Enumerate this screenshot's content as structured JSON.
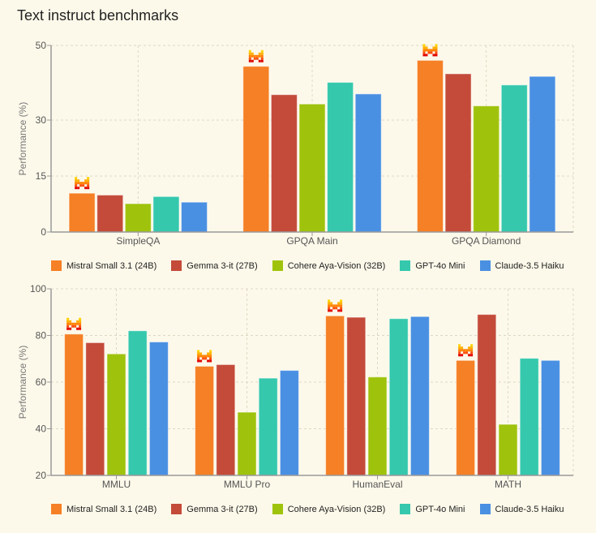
{
  "page": {
    "title": "Text instruct benchmarks"
  },
  "legend": [
    {
      "label": "Mistral Small 3.1 (24B)",
      "color": "#f58025"
    },
    {
      "label": "Gemma 3-it (27B)",
      "color": "#c44b3a"
    },
    {
      "label": "Cohere Aya-Vision (32B)",
      "color": "#9fc30c"
    },
    {
      "label": "GPT-4o Mini",
      "color": "#35c8ad"
    },
    {
      "label": "Claude-3.5 Haiku",
      "color": "#4a90e2"
    }
  ],
  "highlight_icon": "mistral-logo-icon",
  "chart_data": [
    {
      "type": "bar",
      "title": "",
      "xlabel": "",
      "ylabel": "Performance (%)",
      "ylim": [
        0,
        50
      ],
      "yticks": [
        0,
        15,
        30,
        50
      ],
      "grid": true,
      "legend_position": "bottom",
      "categories": [
        "SimpleQA",
        "GPQA Main",
        "GPQA Diamond"
      ],
      "series": [
        {
          "name": "Mistral Small 3.1 (24B)",
          "values": [
            10.4,
            44.4,
            46.0
          ]
        },
        {
          "name": "Gemma 3-it (27B)",
          "values": [
            9.9,
            36.8,
            42.4
          ]
        },
        {
          "name": "Cohere Aya-Vision (32B)",
          "values": [
            7.6,
            34.3,
            33.8
          ]
        },
        {
          "name": "GPT-4o Mini",
          "values": [
            9.5,
            40.1,
            39.4
          ]
        },
        {
          "name": "Claude-3.5 Haiku",
          "values": [
            8.0,
            37.0,
            41.7
          ]
        }
      ],
      "highlight_series": "Mistral Small 3.1 (24B)"
    },
    {
      "type": "bar",
      "title": "",
      "xlabel": "",
      "ylabel": "Performance (%)",
      "ylim": [
        20,
        100
      ],
      "yticks": [
        20,
        40,
        60,
        80,
        100
      ],
      "grid": true,
      "legend_position": "bottom",
      "categories": [
        "MMLU",
        "MMLU Pro",
        "HumanEval",
        "MATH"
      ],
      "series": [
        {
          "name": "Mistral Small 3.1 (24B)",
          "values": [
            80.6,
            66.8,
            88.4,
            69.3
          ]
        },
        {
          "name": "Gemma 3-it (27B)",
          "values": [
            76.9,
            67.5,
            87.8,
            89.0
          ]
        },
        {
          "name": "Cohere Aya-Vision (32B)",
          "values": [
            72.1,
            47.1,
            62.2,
            41.9
          ]
        },
        {
          "name": "GPT-4o Mini",
          "values": [
            82.0,
            61.7,
            87.2,
            70.2
          ]
        },
        {
          "name": "Claude-3.5 Haiku",
          "values": [
            77.2,
            65.0,
            88.1,
            69.3
          ]
        }
      ],
      "highlight_series": "Mistral Small 3.1 (24B)"
    }
  ]
}
